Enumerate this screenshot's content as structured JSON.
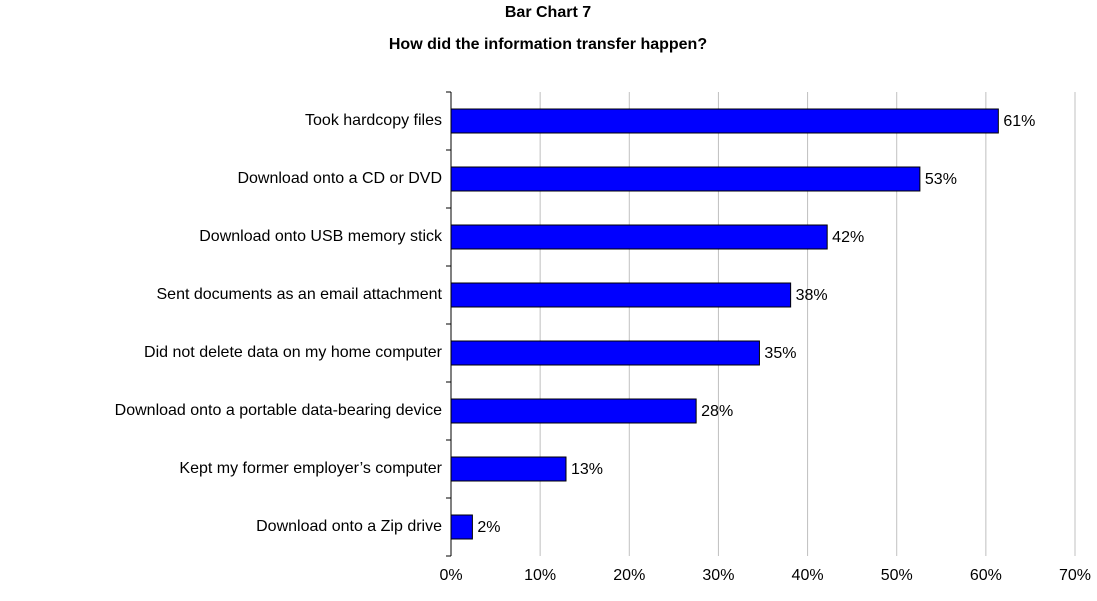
{
  "chart_data": {
    "type": "hbar",
    "title": "Bar Chart 7",
    "subtitle": "How did the information transfer happen?",
    "categories": [
      "Took hardcopy files",
      "Download onto a CD or DVD",
      "Download onto USB memory stick",
      "Sent documents as an email attachment",
      "Did not delete data on my home computer",
      "Download onto a portable data-bearing device",
      "Kept my former employer’s computer",
      "Download onto a Zip drive"
    ],
    "values": [
      61.4,
      52.6,
      42.2,
      38.1,
      34.6,
      27.5,
      12.9,
      2.4
    ],
    "value_labels": [
      "61%",
      "53%",
      "42%",
      "38%",
      "35%",
      "28%",
      "13%",
      "2%"
    ],
    "color": "#0000ff",
    "xlim": [
      0,
      70
    ],
    "xticks": [
      {
        "value": 0,
        "label": "0%"
      },
      {
        "value": 10,
        "label": "10%"
      },
      {
        "value": 20,
        "label": "20%"
      },
      {
        "value": 30,
        "label": "30%"
      },
      {
        "value": 40,
        "label": "40%"
      },
      {
        "value": 50,
        "label": "50%"
      },
      {
        "value": 60,
        "label": "60%"
      },
      {
        "value": 70,
        "label": "70%"
      }
    ],
    "grid": true
  }
}
